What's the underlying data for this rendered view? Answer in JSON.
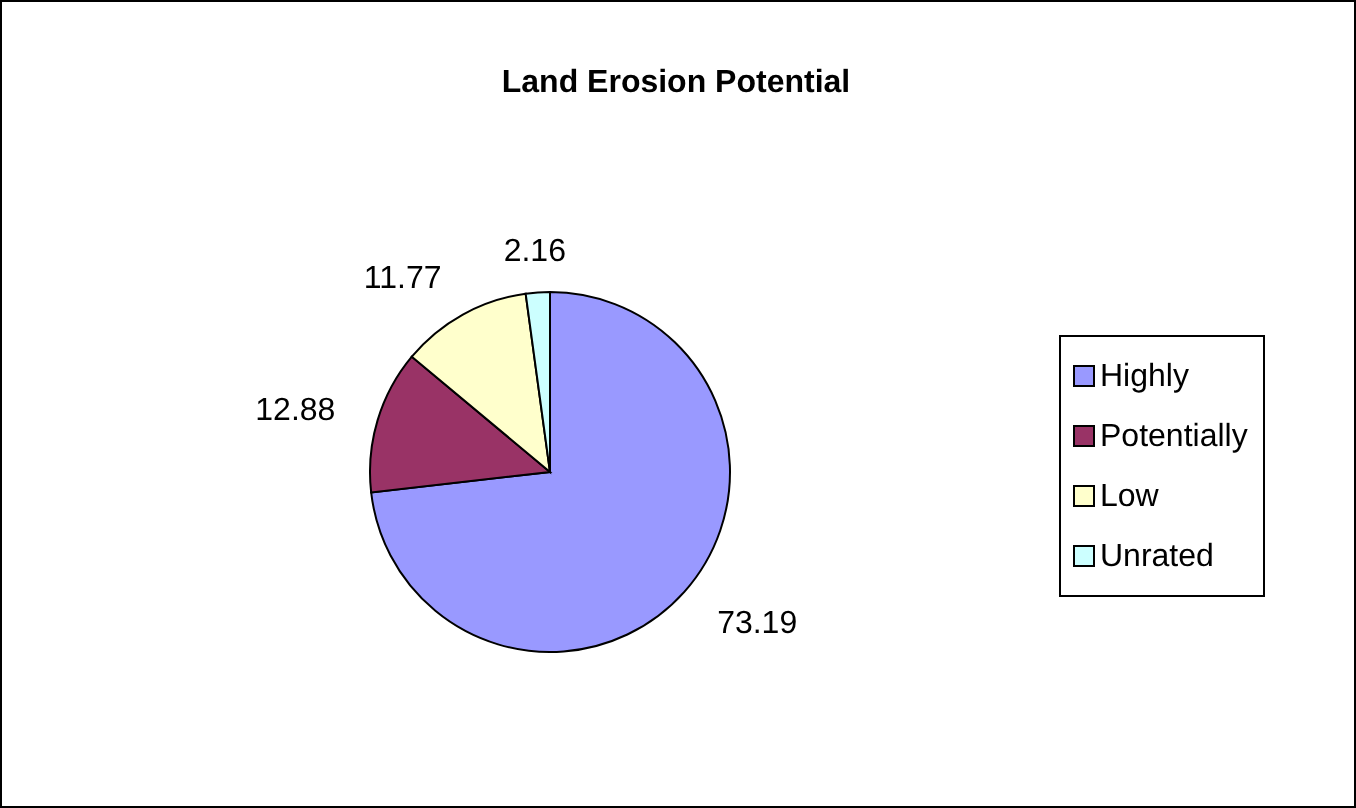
{
  "chart_data": {
    "type": "pie",
    "title": "Land Erosion Potential",
    "categories": [
      "Highly",
      "Potentially",
      "Low",
      "Unrated"
    ],
    "values": [
      73.19,
      12.88,
      11.77,
      2.16
    ],
    "colors": [
      "#9999ff",
      "#993366",
      "#ffffcc",
      "#ccffff"
    ],
    "data_labels": true,
    "legend": "right"
  }
}
